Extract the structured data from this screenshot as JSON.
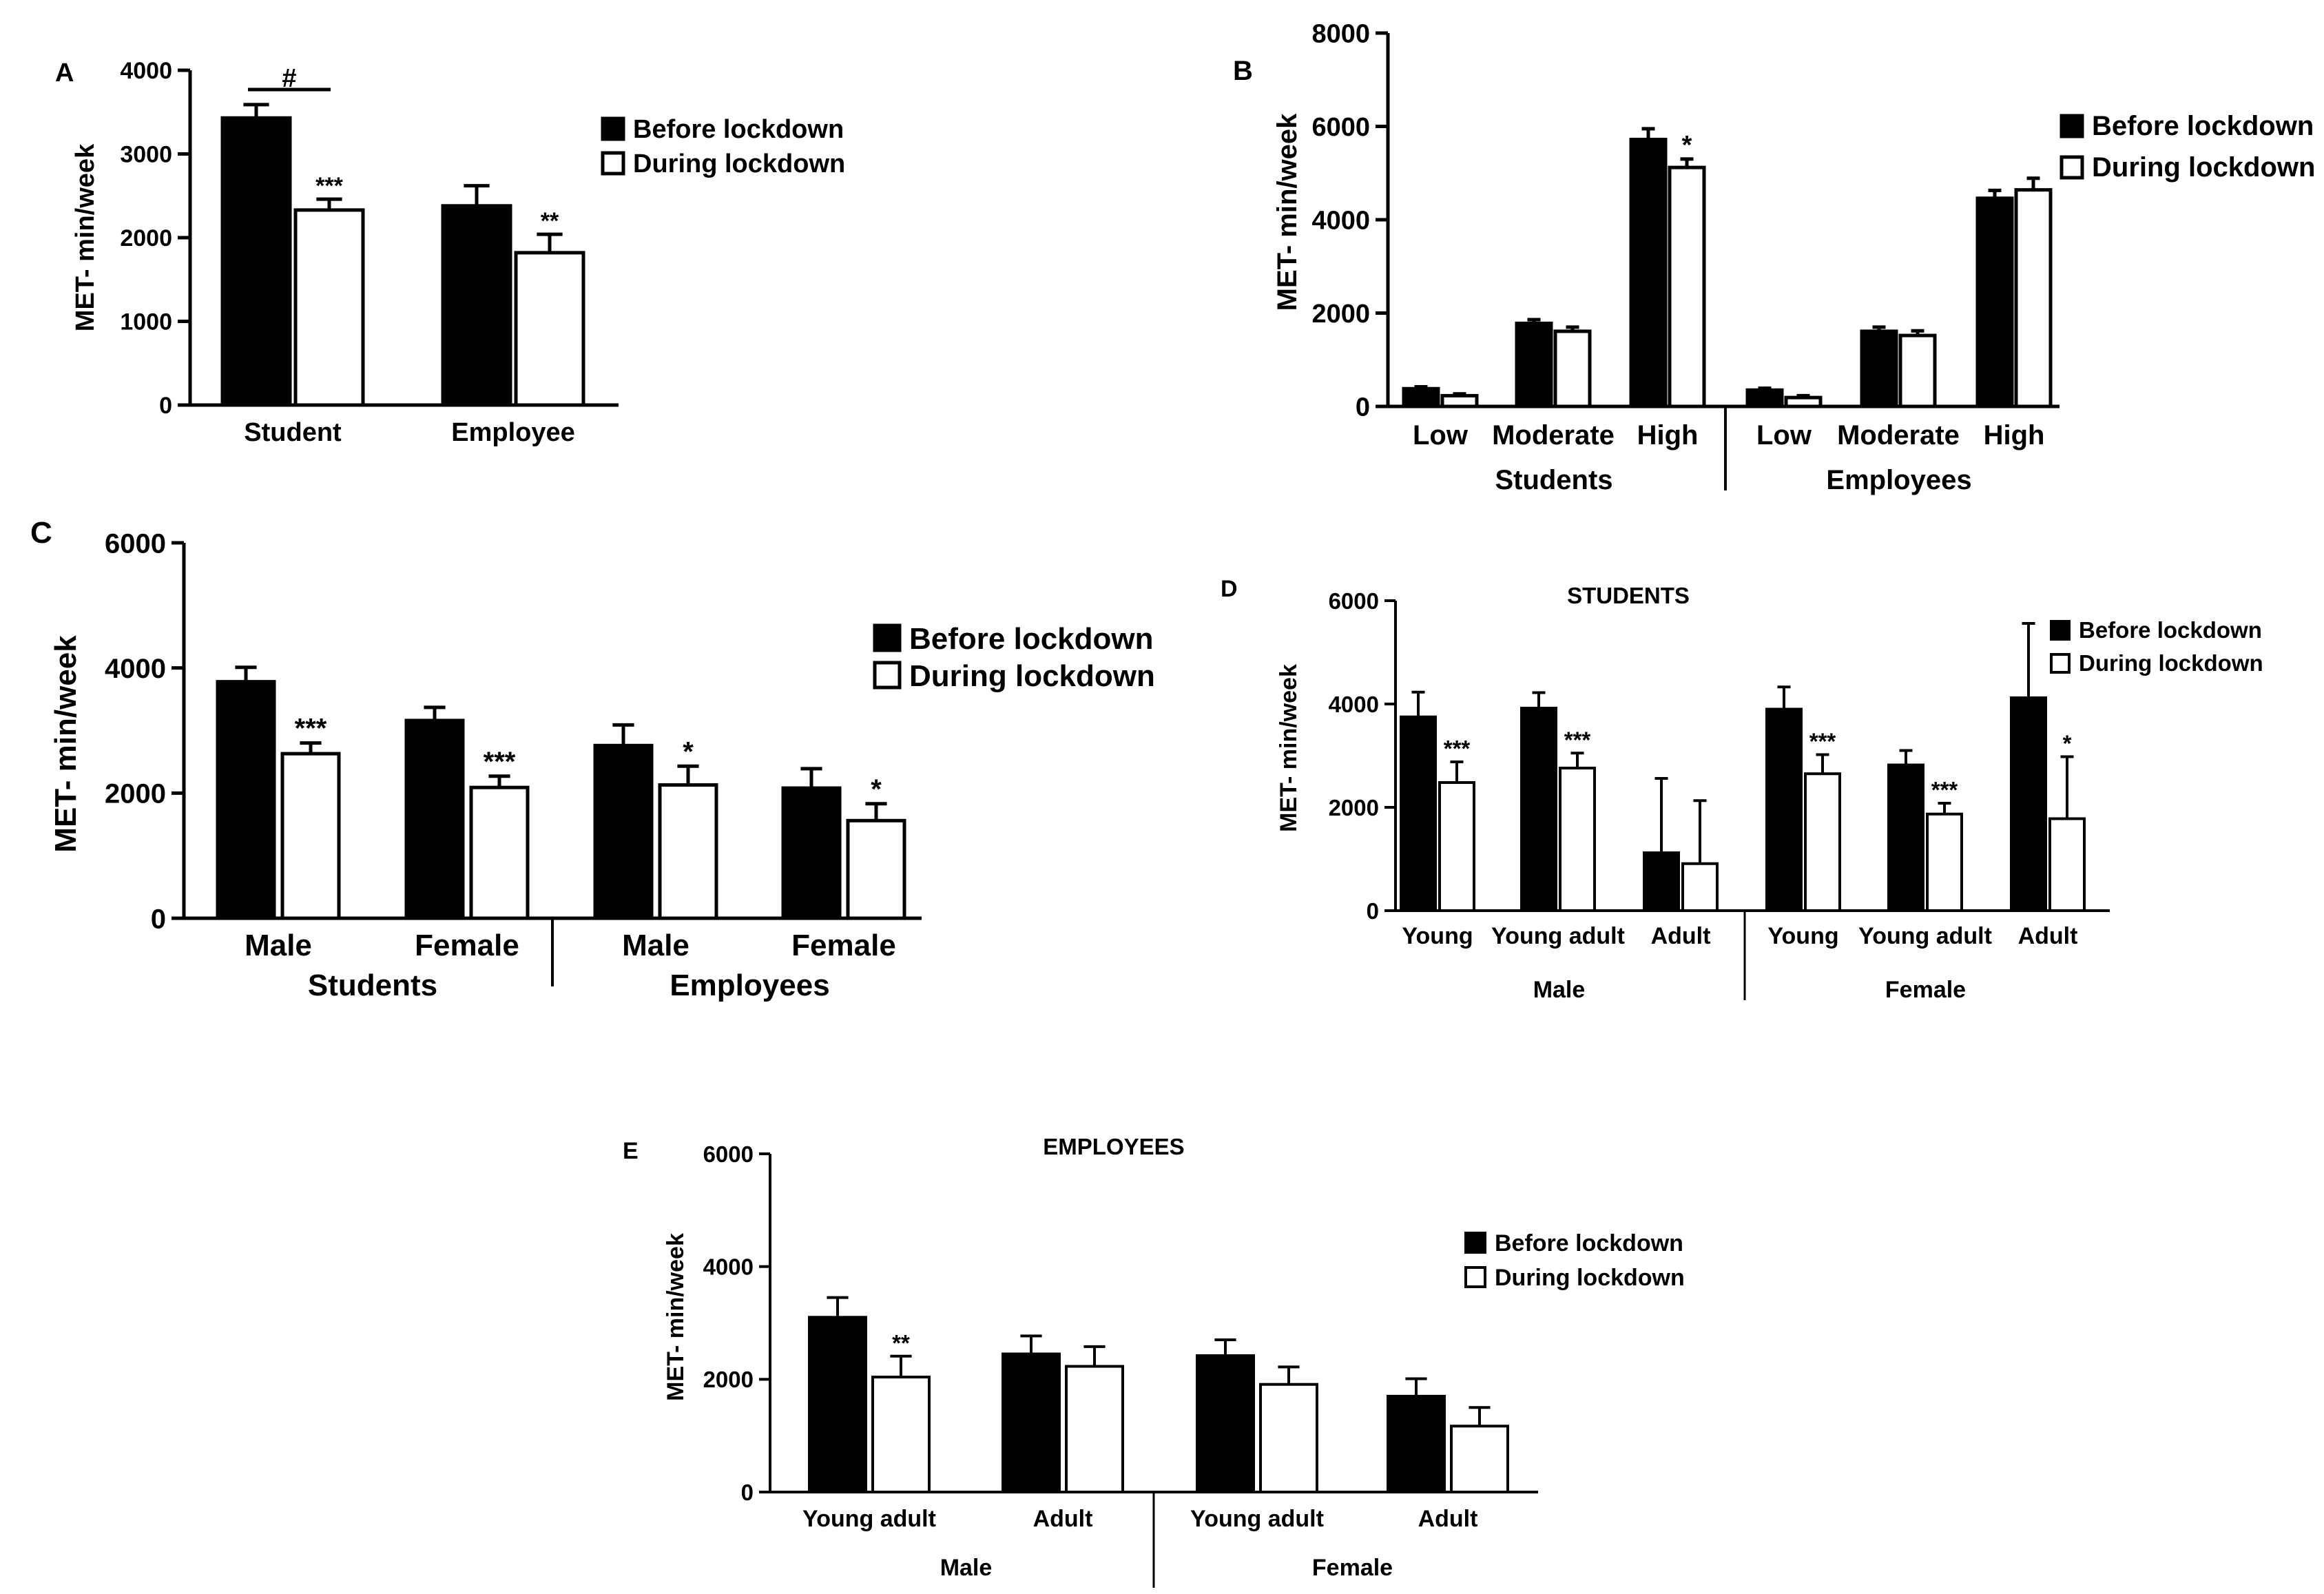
{
  "chart_data": [
    {
      "id": "A",
      "type": "bar",
      "panel_label": "A",
      "title": "",
      "ylabel": "MET- min/week",
      "ylim": [
        0,
        4000
      ],
      "yticks": [
        "0",
        "1000",
        "2000",
        "3000",
        "4000"
      ],
      "legend": [
        "Before lockdown",
        "During lockdown"
      ],
      "legend_position": "right",
      "groups": [
        {
          "label": "Student",
          "bars": [
            {
              "series": "Before lockdown",
              "value": 3430,
              "err": 160,
              "sig": ""
            },
            {
              "series": "During lockdown",
              "value": 2330,
              "err": 130,
              "sig": "***"
            }
          ]
        },
        {
          "label": "Employee",
          "bars": [
            {
              "series": "Before lockdown",
              "value": 2380,
              "err": 240,
              "sig": ""
            },
            {
              "series": "During lockdown",
              "value": 1820,
              "err": 220,
              "sig": "**"
            }
          ]
        }
      ],
      "sections": [],
      "bracket": {
        "label": "#",
        "group": 0
      }
    },
    {
      "id": "B",
      "type": "bar",
      "panel_label": "B",
      "title": "",
      "ylabel": "MET- min/week",
      "ylim": [
        0,
        8000
      ],
      "yticks": [
        "0",
        "2000",
        "4000",
        "6000",
        "8000"
      ],
      "legend": [
        "Before lockdown",
        "During lockdown"
      ],
      "legend_position": "top-right",
      "groups": [
        {
          "label": "Low",
          "bars": [
            {
              "series": "Before lockdown",
              "value": 380,
              "err": 40,
              "sig": ""
            },
            {
              "series": "During lockdown",
              "value": 230,
              "err": 40,
              "sig": ""
            }
          ]
        },
        {
          "label": "Moderate",
          "bars": [
            {
              "series": "Before lockdown",
              "value": 1780,
              "err": 80,
              "sig": ""
            },
            {
              "series": "During lockdown",
              "value": 1610,
              "err": 90,
              "sig": ""
            }
          ]
        },
        {
          "label": "High",
          "bars": [
            {
              "series": "Before lockdown",
              "value": 5720,
              "err": 230,
              "sig": ""
            },
            {
              "series": "During lockdown",
              "value": 5120,
              "err": 180,
              "sig": "*"
            }
          ]
        },
        {
          "label": "Low",
          "bars": [
            {
              "series": "Before lockdown",
              "value": 350,
              "err": 40,
              "sig": ""
            },
            {
              "series": "During lockdown",
              "value": 190,
              "err": 40,
              "sig": ""
            }
          ]
        },
        {
          "label": "Moderate",
          "bars": [
            {
              "series": "Before lockdown",
              "value": 1610,
              "err": 90,
              "sig": ""
            },
            {
              "series": "During lockdown",
              "value": 1520,
              "err": 100,
              "sig": ""
            }
          ]
        },
        {
          "label": "High",
          "bars": [
            {
              "series": "Before lockdown",
              "value": 4460,
              "err": 170,
              "sig": ""
            },
            {
              "series": "During lockdown",
              "value": 4640,
              "err": 250,
              "sig": ""
            }
          ]
        }
      ],
      "sections": [
        "Students",
        "Employees"
      ]
    },
    {
      "id": "C",
      "type": "bar",
      "panel_label": "C",
      "title": "",
      "ylabel": "MET- min/week",
      "ylim": [
        0,
        6000
      ],
      "yticks": [
        "0",
        "2000",
        "4000",
        "6000"
      ],
      "legend": [
        "Before lockdown",
        "During lockdown"
      ],
      "legend_position": "right",
      "groups": [
        {
          "label": "Male",
          "bars": [
            {
              "series": "Before lockdown",
              "value": 3780,
              "err": 230,
              "sig": ""
            },
            {
              "series": "During lockdown",
              "value": 2630,
              "err": 170,
              "sig": "***"
            }
          ]
        },
        {
          "label": "Female",
          "bars": [
            {
              "series": "Before lockdown",
              "value": 3160,
              "err": 210,
              "sig": ""
            },
            {
              "series": "During lockdown",
              "value": 2090,
              "err": 180,
              "sig": "***"
            }
          ]
        },
        {
          "label": "Male",
          "bars": [
            {
              "series": "Before lockdown",
              "value": 2760,
              "err": 330,
              "sig": ""
            },
            {
              "series": "During lockdown",
              "value": 2130,
              "err": 300,
              "sig": "*"
            }
          ]
        },
        {
          "label": "Female",
          "bars": [
            {
              "series": "Before lockdown",
              "value": 2080,
              "err": 310,
              "sig": ""
            },
            {
              "series": "During lockdown",
              "value": 1560,
              "err": 270,
              "sig": "*"
            }
          ]
        }
      ],
      "sections": [
        "Students",
        "Employees"
      ]
    },
    {
      "id": "D",
      "type": "bar",
      "panel_label": "D",
      "title": "STUDENTS",
      "ylabel": "MET- min/week",
      "ylim": [
        0,
        6000
      ],
      "yticks": [
        "0",
        "2000",
        "4000",
        "6000"
      ],
      "legend": [
        "Before lockdown",
        "During lockdown"
      ],
      "legend_position": "top-right",
      "groups": [
        {
          "label": "Young",
          "bars": [
            {
              "series": "Before lockdown",
              "value": 3750,
              "err": 480,
              "sig": ""
            },
            {
              "series": "During lockdown",
              "value": 2480,
              "err": 400,
              "sig": "***"
            }
          ]
        },
        {
          "label": "Young adult",
          "bars": [
            {
              "series": "Before lockdown",
              "value": 3920,
              "err": 300,
              "sig": ""
            },
            {
              "series": "During lockdown",
              "value": 2760,
              "err": 290,
              "sig": "***"
            }
          ]
        },
        {
          "label": "Adult",
          "bars": [
            {
              "series": "Before lockdown",
              "value": 1120,
              "err": 1440,
              "sig": ""
            },
            {
              "series": "During lockdown",
              "value": 910,
              "err": 1220,
              "sig": ""
            }
          ]
        },
        {
          "label": "Young",
          "bars": [
            {
              "series": "Before lockdown",
              "value": 3900,
              "err": 430,
              "sig": ""
            },
            {
              "series": "During lockdown",
              "value": 2650,
              "err": 370,
              "sig": "***"
            }
          ]
        },
        {
          "label": "Young adult",
          "bars": [
            {
              "series": "Before lockdown",
              "value": 2820,
              "err": 280,
              "sig": ""
            },
            {
              "series": "During lockdown",
              "value": 1870,
              "err": 210,
              "sig": "***"
            }
          ]
        },
        {
          "label": "Adult",
          "bars": [
            {
              "series": "Before lockdown",
              "value": 4120,
              "err": 1440,
              "sig": ""
            },
            {
              "series": "During lockdown",
              "value": 1780,
              "err": 1200,
              "sig": "*"
            }
          ]
        }
      ],
      "sections": [
        "Male",
        "Female"
      ]
    },
    {
      "id": "E",
      "type": "bar",
      "panel_label": "E",
      "title": "EMPLOYEES",
      "ylabel": "MET- min/week",
      "ylim": [
        0,
        6000
      ],
      "yticks": [
        "0",
        "2000",
        "4000",
        "6000"
      ],
      "legend": [
        "Before lockdown",
        "During lockdown"
      ],
      "legend_position": "right",
      "groups": [
        {
          "label": "Young adult",
          "bars": [
            {
              "series": "Before lockdown",
              "value": 3100,
              "err": 350,
              "sig": ""
            },
            {
              "series": "During lockdown",
              "value": 2040,
              "err": 370,
              "sig": "**"
            }
          ]
        },
        {
          "label": "Adult",
          "bars": [
            {
              "series": "Before lockdown",
              "value": 2450,
              "err": 320,
              "sig": ""
            },
            {
              "series": "During lockdown",
              "value": 2230,
              "err": 350,
              "sig": ""
            }
          ]
        },
        {
          "label": "Young adult",
          "bars": [
            {
              "series": "Before lockdown",
              "value": 2420,
              "err": 280,
              "sig": ""
            },
            {
              "series": "During lockdown",
              "value": 1910,
              "err": 310,
              "sig": ""
            }
          ]
        },
        {
          "label": "Adult",
          "bars": [
            {
              "series": "Before lockdown",
              "value": 1700,
              "err": 310,
              "sig": ""
            },
            {
              "series": "During lockdown",
              "value": 1170,
              "err": 330,
              "sig": ""
            }
          ]
        }
      ],
      "sections": [
        "Male",
        "Female"
      ]
    }
  ]
}
